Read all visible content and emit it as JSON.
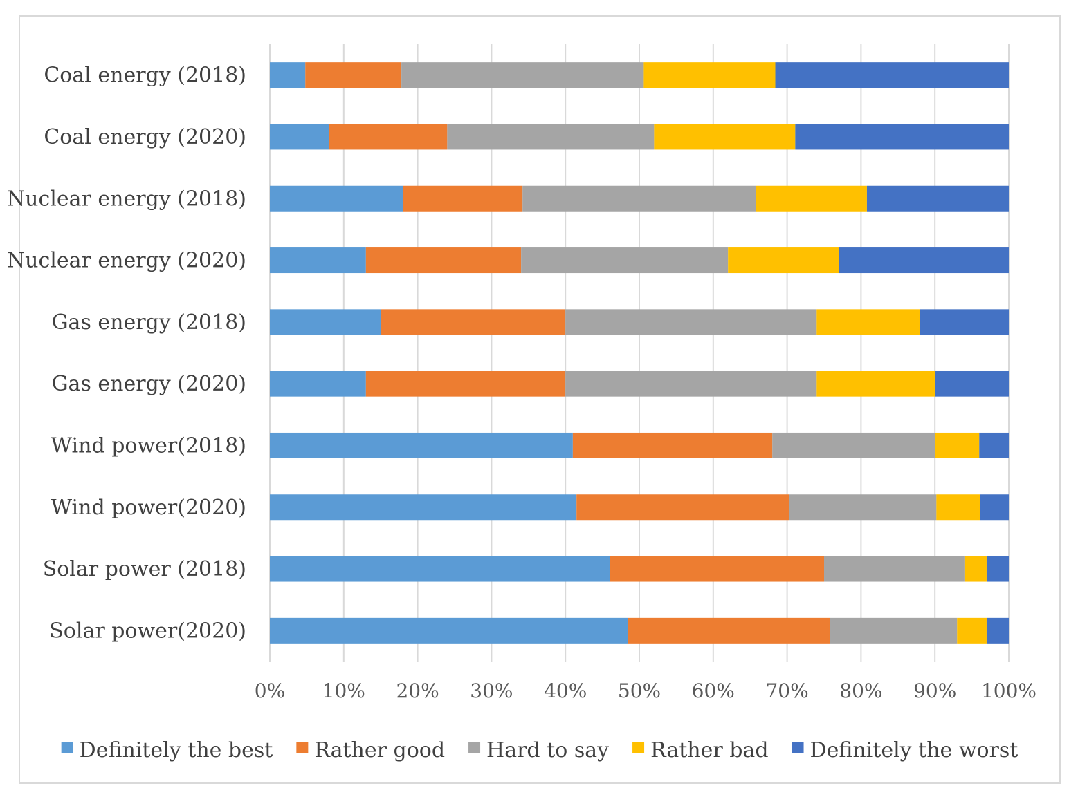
{
  "chart_data": {
    "type": "bar",
    "orientation": "horizontal",
    "stacking": "percent",
    "categories": [
      "Coal energy (2018)",
      "Coal energy (2020)",
      "Nuclear energy (2018)",
      "Nuclear energy (2020)",
      "Gas energy (2018)",
      "Gas energy (2020)",
      "Wind power(2018)",
      "Wind power(2020)",
      "Solar power (2018)",
      "Solar power(2020)"
    ],
    "series": [
      {
        "name": "Definitely the best",
        "color": "#5b9bd5",
        "values": [
          4.8,
          8,
          18,
          13,
          15,
          13,
          41,
          41.5,
          46,
          48.5
        ]
      },
      {
        "name": "Rather good",
        "color": "#ed7d31",
        "values": [
          13,
          16,
          16.2,
          21,
          25,
          27,
          27,
          28.8,
          29,
          27.3
        ]
      },
      {
        "name": "Hard to say",
        "color": "#a5a5a5",
        "values": [
          32.8,
          28,
          31.6,
          28,
          34,
          34,
          22,
          19.9,
          19,
          17.2
        ]
      },
      {
        "name": "Rather bad",
        "color": "#ffc000",
        "values": [
          17.8,
          19.1,
          15,
          15,
          14,
          16,
          6,
          5.9,
          3,
          4
        ]
      },
      {
        "name": "Definitely the worst",
        "color": "#4472c4",
        "values": [
          31.6,
          28.9,
          19.2,
          23,
          12,
          10,
          4,
          3.9,
          3,
          3
        ]
      }
    ],
    "x_ticks": [
      "0%",
      "10%",
      "20%",
      "30%",
      "40%",
      "50%",
      "60%",
      "70%",
      "80%",
      "90%",
      "100%"
    ],
    "xlim": [
      0,
      100
    ],
    "grid": true,
    "legend_position": "bottom",
    "title": "",
    "xlabel": "",
    "ylabel": ""
  }
}
